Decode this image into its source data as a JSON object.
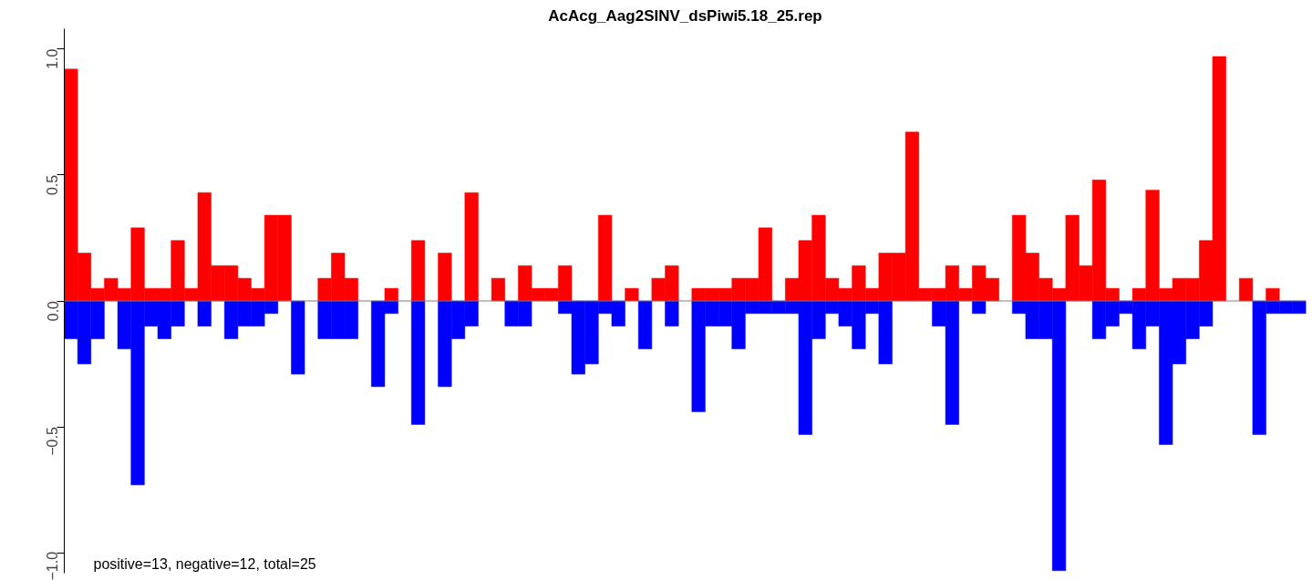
{
  "chart_data": {
    "type": "bar",
    "title": "AcAcg_Aag2SINV_dsPiwi5.18_25.rep",
    "stacked": true,
    "categories": [
      null,
      null,
      null,
      null,
      null,
      null,
      null,
      null,
      null,
      null,
      null,
      null,
      null,
      null,
      null,
      null,
      null,
      null,
      null,
      null,
      null,
      null,
      null,
      null,
      null,
      null,
      null,
      null,
      null,
      null,
      null,
      null,
      null,
      null,
      null,
      null,
      null,
      null,
      null,
      null,
      null,
      null,
      null,
      null,
      null,
      null,
      null,
      null,
      null,
      null,
      null,
      null,
      null,
      null,
      null,
      null,
      null,
      null,
      null,
      null,
      null,
      null,
      null,
      null,
      null,
      null,
      null,
      null,
      null,
      null,
      null,
      null,
      null,
      null,
      null,
      null,
      null,
      null,
      null,
      null,
      null,
      null,
      null,
      null,
      null,
      null,
      null,
      null,
      null,
      null,
      null,
      null,
      null
    ],
    "series": [
      {
        "color": "#ff0000",
        "values": [
          0.92,
          0.19,
          0.05,
          0.09,
          0.05,
          0.29,
          0.05,
          0.05,
          0.24,
          0.05,
          0.43,
          0.14,
          0.14,
          0.09,
          0.05,
          0.34,
          0.34,
          null,
          null,
          0.09,
          0.19,
          0.09,
          null,
          null,
          0.05,
          null,
          0.24,
          null,
          0.19,
          null,
          0.43,
          null,
          0.09,
          null,
          0.14,
          0.05,
          0.05,
          0.14,
          null,
          null,
          0.34,
          null,
          0.05,
          null,
          0.09,
          0.14,
          null,
          0.05,
          0.05,
          0.05,
          0.09,
          0.09,
          0.29,
          null,
          0.09,
          0.24,
          0.34,
          0.09,
          0.05,
          0.14,
          0.05,
          0.19,
          0.19,
          0.67,
          0.05,
          0.05,
          0.14,
          0.05,
          0.14,
          0.09,
          null,
          0.34,
          0.19,
          0.09,
          0.05,
          0.34,
          0.14,
          0.48,
          0.05,
          null,
          0.05,
          0.44,
          0.05,
          0.09,
          0.09,
          0.24,
          0.97,
          null,
          0.09,
          null,
          0.05,
          null,
          null
        ]
      },
      {
        "color": "#0000ff",
        "values": [
          -0.15,
          -0.25,
          -0.15,
          null,
          -0.19,
          -0.73,
          -0.1,
          -0.15,
          -0.1,
          null,
          -0.1,
          null,
          -0.15,
          -0.1,
          -0.1,
          -0.05,
          null,
          -0.29,
          null,
          -0.15,
          -0.15,
          -0.15,
          null,
          -0.34,
          -0.05,
          null,
          -0.49,
          null,
          -0.34,
          -0.15,
          -0.1,
          null,
          null,
          -0.1,
          -0.1,
          null,
          null,
          -0.05,
          -0.29,
          -0.25,
          -0.05,
          -0.1,
          null,
          -0.19,
          null,
          -0.1,
          null,
          -0.44,
          -0.1,
          -0.1,
          -0.19,
          -0.05,
          -0.05,
          -0.05,
          -0.05,
          -0.53,
          -0.15,
          -0.05,
          -0.1,
          -0.19,
          -0.05,
          -0.25,
          null,
          null,
          null,
          -0.1,
          -0.49,
          null,
          -0.05,
          null,
          null,
          -0.05,
          -0.15,
          -0.15,
          -1.07,
          null,
          null,
          -0.15,
          -0.1,
          -0.05,
          -0.19,
          -0.1,
          -0.57,
          -0.25,
          -0.15,
          -0.1,
          null,
          null,
          null,
          -0.53,
          -0.05,
          -0.05,
          -0.05
        ]
      }
    ],
    "ylim": [
      -1.08,
      1.08
    ],
    "yticks": [
      {
        "value": -1,
        "label": "−1.0"
      },
      {
        "value": -0.5,
        "label": "−0.5"
      },
      {
        "value": 0,
        "label": "0.0"
      },
      {
        "value": 0.5,
        "label": "0.5"
      },
      {
        "value": 1,
        "label": "1.0"
      }
    ],
    "tick_labels": "y",
    "ref_lines": [
      {
        "axis": "y",
        "value": 0,
        "color": "#808080"
      }
    ],
    "annotations": [
      "positive=13, negative=12, total=25"
    ]
  }
}
